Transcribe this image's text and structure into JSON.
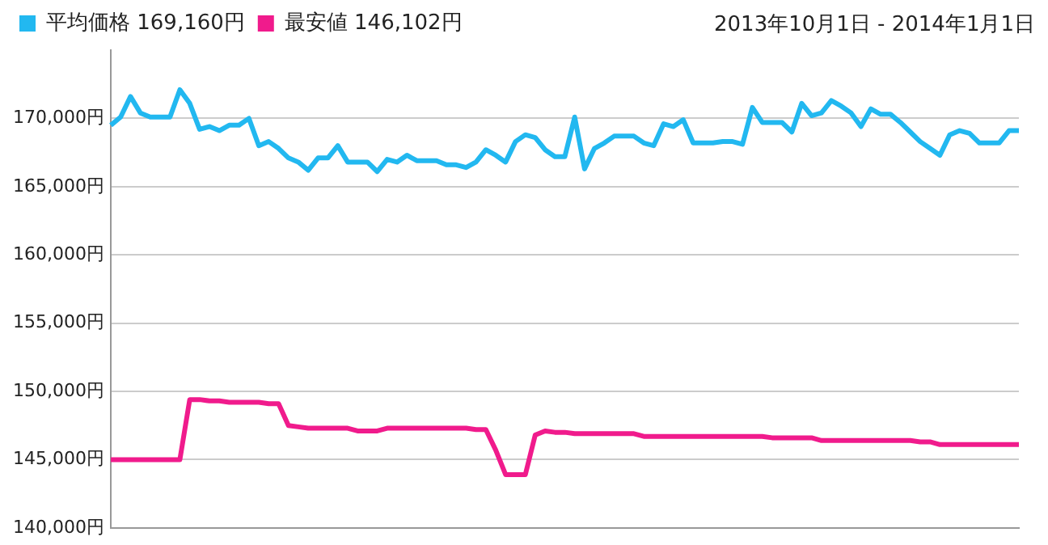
{
  "chart_data": {
    "type": "line",
    "annotations": [
      "2013年10月1日 - 2014年1月1日"
    ],
    "categories": [
      null,
      null,
      null,
      null,
      null,
      null,
      null,
      null,
      null,
      null,
      null,
      null,
      null,
      null,
      null,
      null,
      null,
      null,
      null,
      null,
      null,
      null,
      null,
      null,
      null,
      null,
      null,
      null,
      null,
      null,
      null,
      null,
      null,
      null,
      null,
      null,
      null,
      null,
      null,
      null,
      null,
      null,
      null,
      null,
      null,
      null,
      null,
      null,
      null,
      null,
      null,
      null,
      null,
      null,
      null,
      null,
      null,
      null,
      null,
      null,
      null,
      null,
      null,
      null,
      null,
      null,
      null,
      null,
      null,
      null,
      null,
      null,
      null,
      null,
      null,
      null,
      null,
      null,
      null,
      null,
      null,
      null,
      null,
      null,
      null,
      null,
      null,
      null,
      null,
      null,
      null,
      null,
      null
    ],
    "series": [
      {
        "name": "平均価格 169,160円",
        "color": "#22b8f0",
        "values": [
          169500,
          170100,
          171600,
          170400,
          170100,
          170100,
          170100,
          172100,
          171100,
          169200,
          169400,
          169100,
          169500,
          169500,
          170000,
          168000,
          168300,
          167800,
          167100,
          166800,
          166200,
          167100,
          167100,
          168000,
          166800,
          166800,
          166800,
          166100,
          167000,
          166800,
          167300,
          166900,
          166900,
          166900,
          166600,
          166600,
          166400,
          166800,
          167700,
          167300,
          166800,
          168300,
          168800,
          168600,
          167700,
          167200,
          167200,
          170100,
          166300,
          167800,
          168200,
          168700,
          168700,
          168700,
          168200,
          168000,
          169600,
          169400,
          169900,
          168200,
          168200,
          168200,
          168300,
          168300,
          168100,
          170800,
          169700,
          169700,
          169700,
          169000,
          171100,
          170200,
          170400,
          171300,
          170900,
          170400,
          169400,
          170700,
          170300,
          170300,
          169700,
          169000,
          168300,
          167800,
          167300,
          168800,
          169100,
          168900,
          168200,
          168200,
          168200,
          169100,
          169100
        ]
      },
      {
        "name": "最安値 146,102円",
        "color": "#f01b8c",
        "values": [
          145000,
          145000,
          145000,
          145000,
          145000,
          145000,
          145000,
          145000,
          149400,
          149400,
          149300,
          149300,
          149200,
          149200,
          149200,
          149200,
          149100,
          149100,
          147500,
          147400,
          147300,
          147300,
          147300,
          147300,
          147300,
          147100,
          147100,
          147100,
          147300,
          147300,
          147300,
          147300,
          147300,
          147300,
          147300,
          147300,
          147300,
          147200,
          147200,
          145700,
          143900,
          143900,
          143900,
          146800,
          147100,
          147000,
          147000,
          146900,
          146900,
          146900,
          146900,
          146900,
          146900,
          146900,
          146700,
          146700,
          146700,
          146700,
          146700,
          146700,
          146700,
          146700,
          146700,
          146700,
          146700,
          146700,
          146700,
          146600,
          146600,
          146600,
          146600,
          146600,
          146400,
          146400,
          146400,
          146400,
          146400,
          146400,
          146400,
          146400,
          146400,
          146400,
          146300,
          146300,
          146100,
          146100,
          146100,
          146100,
          146100,
          146100,
          146100,
          146100,
          146100
        ]
      }
    ],
    "ylim": [
      140000,
      175000
    ],
    "yticks": [
      {
        "value": 140000,
        "label": "140,000円"
      },
      {
        "value": 145000,
        "label": "145,000円"
      },
      {
        "value": 150000,
        "label": "150,000円"
      },
      {
        "value": 155000,
        "label": "155,000円"
      },
      {
        "value": 160000,
        "label": "160,000円"
      },
      {
        "value": 165000,
        "label": "165,000円"
      },
      {
        "value": 170000,
        "label": "170,000円"
      }
    ],
    "grid": "y",
    "legend": "top left",
    "tick_labels": "y",
    "marker": "none",
    "line_style": "solid"
  }
}
